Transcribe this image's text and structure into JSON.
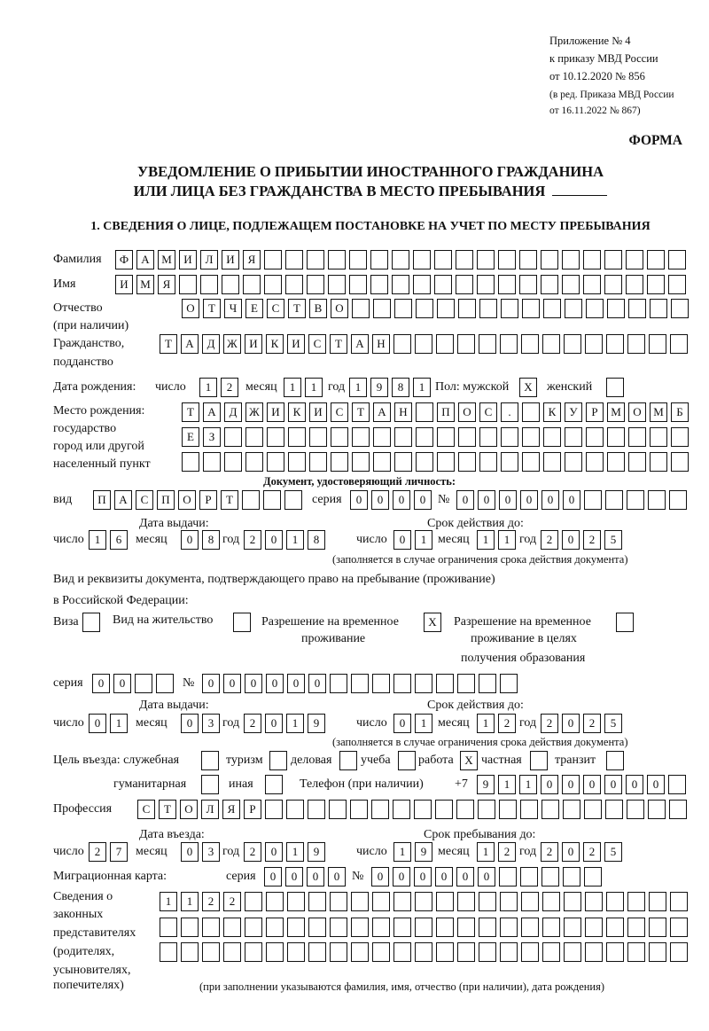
{
  "header": {
    "appendix": [
      "Приложение № 4",
      "к приказу МВД России",
      "от 10.12.2020 № 856"
    ],
    "revision": [
      "(в ред. Приказа МВД России",
      "от 16.11.2022 № 867)"
    ],
    "form_label": "ФОРМА",
    "title_line1": "УВЕДОМЛЕНИЕ О ПРИБЫТИИ ИНОСТРАННОГО ГРАЖДАНИНА",
    "title_line2": "ИЛИ ЛИЦА БЕЗ ГРАЖДАНСТВА В МЕСТО ПРЕБЫВАНИЯ",
    "section1": "1. СВЕДЕНИЯ О ЛИЦЕ, ПОДЛЕЖАЩЕМ ПОСТАНОВКЕ НА УЧЕТ ПО МЕСТУ ПРЕБЫВАНИЯ"
  },
  "person": {
    "surname_label": "Фамилия",
    "surname": "ФАМИЛИЯ",
    "name_label": "Имя",
    "name": "ИМЯ",
    "patronymic_label": "Отчество",
    "patronymic_label2": "(при наличии)",
    "patronymic": "ОТЧЕСТВО",
    "citizenship_label": "Гражданство,",
    "citizenship_label2": "подданство",
    "citizenship": "ТАДЖИКИСТАН",
    "birth_label": "Дата рождения:",
    "day_label": "число",
    "month_label": "месяц",
    "year_label": "год",
    "birth_day": "12",
    "birth_month": "11",
    "birth_year": "1981",
    "sex_label": "Пол: мужской",
    "male": "X",
    "female_label": "женский",
    "female": "",
    "birthplace_labels": [
      "Место рождения:",
      "государство",
      "город или другой",
      "населенный пункт"
    ],
    "birthplace_lines": [
      "ТАДЖИКИСТАН ПОС. КУРМОМБ",
      "ЕЗ",
      ""
    ]
  },
  "identity_doc": {
    "heading": "Документ, удостоверяющий личность:",
    "kind_label": "вид",
    "kind": "ПАСПОРТ",
    "series_label": "серия",
    "series": "0000",
    "number_label": "№",
    "number": "000000",
    "issue_label": "Дата выдачи:",
    "valid_label": "Срок действия до:",
    "issue_day": "16",
    "issue_month": "08",
    "issue_year": "2018",
    "valid_day": "01",
    "valid_month": "11",
    "valid_year": "2025",
    "note": "(заполняется в случае ограничения срока действия документа)"
  },
  "stay_doc": {
    "heading1": "Вид и реквизиты документа, подтверждающего право на пребывание (проживание)",
    "heading2": "в Российской Федерации:",
    "visa_label": "Виза",
    "visa": "",
    "residence_label": "Вид на жительство",
    "residence": "",
    "temp_label1": "Разрешение на временное",
    "temp_label2": "проживание",
    "temp": "X",
    "edu_label1": "Разрешение на временное",
    "edu_label2": "проживание в целях",
    "edu_label3": "получения образования",
    "edu": "",
    "series_label": "серия",
    "series": "00",
    "number_label": "№",
    "number": "000000",
    "issue_label": "Дата выдачи:",
    "valid_label": "Срок действия до:",
    "issue_day": "01",
    "issue_month": "03",
    "issue_year": "2019",
    "valid_day": "01",
    "valid_month": "12",
    "valid_year": "2025",
    "note": "(заполняется в случае ограничения срока действия документа)"
  },
  "purpose": {
    "label": "Цель въезда: служебная",
    "service": "",
    "tourism_label": "туризм",
    "tourism": "",
    "business_label": "деловая",
    "business": "",
    "study_label": "учеба",
    "study": "",
    "work_label": "работа",
    "work": "X",
    "private_label": "частная",
    "private": "",
    "transit_label": "транзит",
    "transit": "",
    "humanitarian_label": "гуманитарная",
    "humanitarian": "",
    "other_label": "иная",
    "other": ""
  },
  "phone": {
    "label": "Телефон (при наличии)",
    "prefix": "+7",
    "value": "911000000"
  },
  "profession": {
    "label": "Профессия",
    "value": "СТОЛЯР"
  },
  "entry": {
    "entry_label": "Дата въезда:",
    "stay_label": "Срок пребывания до:",
    "entry_day": "27",
    "entry_month": "03",
    "entry_year": "2019",
    "stay_day": "19",
    "stay_month": "12",
    "stay_year": "2025"
  },
  "migration_card": {
    "label": "Миграционная карта:",
    "series_label": "серия",
    "series": "0000",
    "number_label": "№",
    "number": "000000"
  },
  "representatives": {
    "labels": [
      "Сведения о",
      "законных",
      "представителях",
      "(родителях,",
      "усыновителях,",
      "попечителях)"
    ],
    "lines": [
      "1122",
      "",
      ""
    ],
    "note": "(при заполнении указываются фамилия, имя, отчество (при наличии), дата рождения)"
  }
}
